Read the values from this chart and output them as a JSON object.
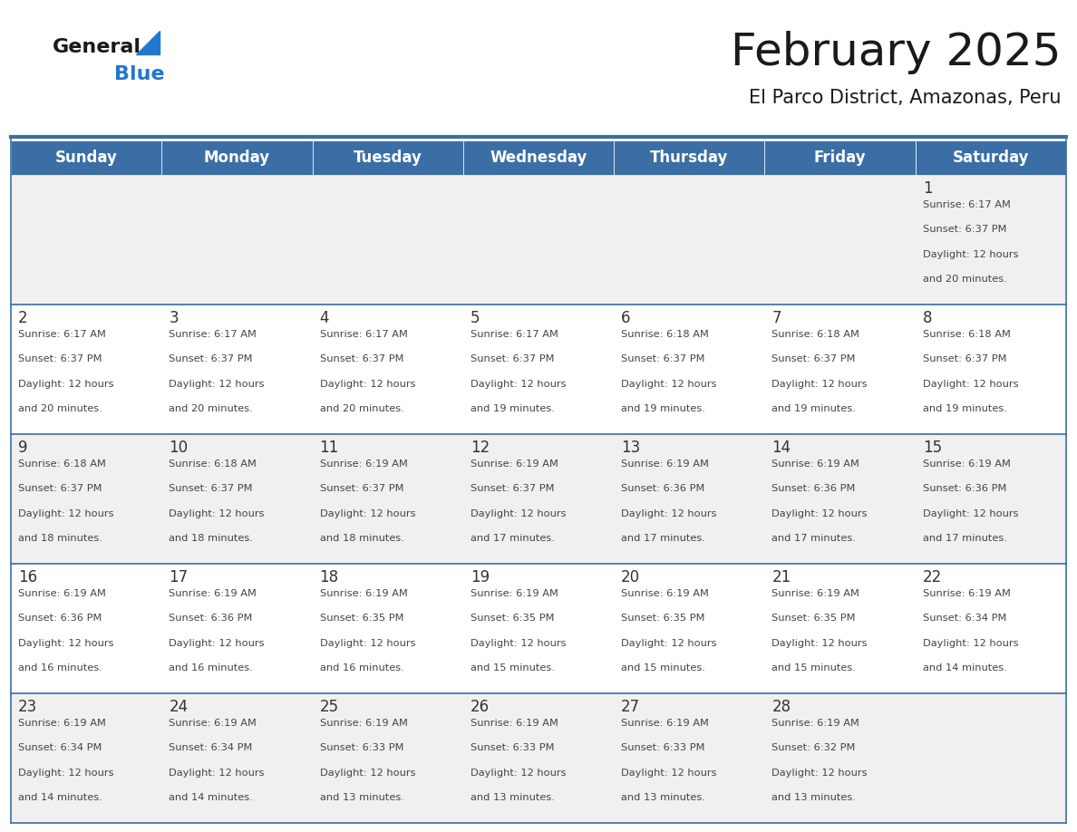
{
  "title": "February 2025",
  "subtitle": "El Parco District, Amazonas, Peru",
  "days_of_week": [
    "Sunday",
    "Monday",
    "Tuesday",
    "Wednesday",
    "Thursday",
    "Friday",
    "Saturday"
  ],
  "header_bg_color": "#3a6ea5",
  "header_text_color": "#ffffff",
  "cell_bg_color": "#f0f0f0",
  "cell_bg_color2": "#ffffff",
  "grid_line_color": "#3a6ea5",
  "day_num_color": "#333333",
  "text_color": "#444444",
  "logo_dark_color": "#1a1a1a",
  "logo_blue_color": "#2277cc",
  "title_color": "#1a1a1a",
  "calendar_data": [
    [
      null,
      null,
      null,
      null,
      null,
      null,
      {
        "day": 1,
        "sunrise": "6:17 AM",
        "sunset": "6:37 PM",
        "daylight_hours": 12,
        "daylight_minutes": 20
      }
    ],
    [
      {
        "day": 2,
        "sunrise": "6:17 AM",
        "sunset": "6:37 PM",
        "daylight_hours": 12,
        "daylight_minutes": 20
      },
      {
        "day": 3,
        "sunrise": "6:17 AM",
        "sunset": "6:37 PM",
        "daylight_hours": 12,
        "daylight_minutes": 20
      },
      {
        "day": 4,
        "sunrise": "6:17 AM",
        "sunset": "6:37 PM",
        "daylight_hours": 12,
        "daylight_minutes": 20
      },
      {
        "day": 5,
        "sunrise": "6:17 AM",
        "sunset": "6:37 PM",
        "daylight_hours": 12,
        "daylight_minutes": 19
      },
      {
        "day": 6,
        "sunrise": "6:18 AM",
        "sunset": "6:37 PM",
        "daylight_hours": 12,
        "daylight_minutes": 19
      },
      {
        "day": 7,
        "sunrise": "6:18 AM",
        "sunset": "6:37 PM",
        "daylight_hours": 12,
        "daylight_minutes": 19
      },
      {
        "day": 8,
        "sunrise": "6:18 AM",
        "sunset": "6:37 PM",
        "daylight_hours": 12,
        "daylight_minutes": 19
      }
    ],
    [
      {
        "day": 9,
        "sunrise": "6:18 AM",
        "sunset": "6:37 PM",
        "daylight_hours": 12,
        "daylight_minutes": 18
      },
      {
        "day": 10,
        "sunrise": "6:18 AM",
        "sunset": "6:37 PM",
        "daylight_hours": 12,
        "daylight_minutes": 18
      },
      {
        "day": 11,
        "sunrise": "6:19 AM",
        "sunset": "6:37 PM",
        "daylight_hours": 12,
        "daylight_minutes": 18
      },
      {
        "day": 12,
        "sunrise": "6:19 AM",
        "sunset": "6:37 PM",
        "daylight_hours": 12,
        "daylight_minutes": 17
      },
      {
        "day": 13,
        "sunrise": "6:19 AM",
        "sunset": "6:36 PM",
        "daylight_hours": 12,
        "daylight_minutes": 17
      },
      {
        "day": 14,
        "sunrise": "6:19 AM",
        "sunset": "6:36 PM",
        "daylight_hours": 12,
        "daylight_minutes": 17
      },
      {
        "day": 15,
        "sunrise": "6:19 AM",
        "sunset": "6:36 PM",
        "daylight_hours": 12,
        "daylight_minutes": 17
      }
    ],
    [
      {
        "day": 16,
        "sunrise": "6:19 AM",
        "sunset": "6:36 PM",
        "daylight_hours": 12,
        "daylight_minutes": 16
      },
      {
        "day": 17,
        "sunrise": "6:19 AM",
        "sunset": "6:36 PM",
        "daylight_hours": 12,
        "daylight_minutes": 16
      },
      {
        "day": 18,
        "sunrise": "6:19 AM",
        "sunset": "6:35 PM",
        "daylight_hours": 12,
        "daylight_minutes": 16
      },
      {
        "day": 19,
        "sunrise": "6:19 AM",
        "sunset": "6:35 PM",
        "daylight_hours": 12,
        "daylight_minutes": 15
      },
      {
        "day": 20,
        "sunrise": "6:19 AM",
        "sunset": "6:35 PM",
        "daylight_hours": 12,
        "daylight_minutes": 15
      },
      {
        "day": 21,
        "sunrise": "6:19 AM",
        "sunset": "6:35 PM",
        "daylight_hours": 12,
        "daylight_minutes": 15
      },
      {
        "day": 22,
        "sunrise": "6:19 AM",
        "sunset": "6:34 PM",
        "daylight_hours": 12,
        "daylight_minutes": 14
      }
    ],
    [
      {
        "day": 23,
        "sunrise": "6:19 AM",
        "sunset": "6:34 PM",
        "daylight_hours": 12,
        "daylight_minutes": 14
      },
      {
        "day": 24,
        "sunrise": "6:19 AM",
        "sunset": "6:34 PM",
        "daylight_hours": 12,
        "daylight_minutes": 14
      },
      {
        "day": 25,
        "sunrise": "6:19 AM",
        "sunset": "6:33 PM",
        "daylight_hours": 12,
        "daylight_minutes": 13
      },
      {
        "day": 26,
        "sunrise": "6:19 AM",
        "sunset": "6:33 PM",
        "daylight_hours": 12,
        "daylight_minutes": 13
      },
      {
        "day": 27,
        "sunrise": "6:19 AM",
        "sunset": "6:33 PM",
        "daylight_hours": 12,
        "daylight_minutes": 13
      },
      {
        "day": 28,
        "sunrise": "6:19 AM",
        "sunset": "6:32 PM",
        "daylight_hours": 12,
        "daylight_minutes": 13
      },
      null
    ]
  ]
}
